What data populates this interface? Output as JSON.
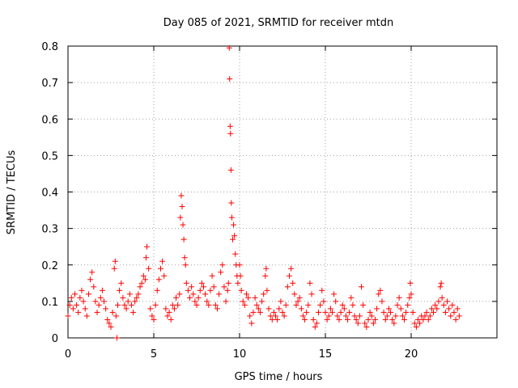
{
  "chart_data": {
    "type": "scatter",
    "title": "Day 085 of 2021, SRMTID for receiver mtdn",
    "xlabel": "GPS time / hours",
    "ylabel": "SRMTID / TECUs",
    "xlim": [
      0,
      25
    ],
    "ylim": [
      0,
      0.8
    ],
    "xticks": [
      0,
      5,
      10,
      15,
      20
    ],
    "xtick_labels": [
      "0",
      "5",
      "10",
      "15",
      "20"
    ],
    "yticks": [
      0,
      0.1,
      0.2,
      0.3,
      0.4,
      0.5,
      0.6,
      0.7,
      0.8
    ],
    "ytick_labels": [
      "0",
      "0.1",
      "0.2",
      "0.3",
      "0.4",
      "0.5",
      "0.6",
      "0.7",
      "0.8"
    ],
    "grid": true,
    "marker": "plus",
    "color": "#ff0000",
    "series": [
      {
        "name": "SRMTID",
        "points": [
          [
            0.0,
            0.06
          ],
          [
            0.1,
            0.09
          ],
          [
            0.2,
            0.11
          ],
          [
            0.3,
            0.08
          ],
          [
            0.4,
            0.12
          ],
          [
            0.5,
            0.09
          ],
          [
            0.6,
            0.07
          ],
          [
            0.7,
            0.11
          ],
          [
            0.8,
            0.13
          ],
          [
            0.9,
            0.1
          ],
          [
            1.0,
            0.08
          ],
          [
            1.1,
            0.06
          ],
          [
            1.2,
            0.12
          ],
          [
            1.3,
            0.16
          ],
          [
            1.4,
            0.18
          ],
          [
            1.5,
            0.14
          ],
          [
            1.6,
            0.1
          ],
          [
            1.7,
            0.07
          ],
          [
            1.8,
            0.09
          ],
          [
            1.9,
            0.11
          ],
          [
            2.0,
            0.13
          ],
          [
            2.1,
            0.1
          ],
          [
            2.2,
            0.08
          ],
          [
            2.3,
            0.05
          ],
          [
            2.4,
            0.04
          ],
          [
            2.5,
            0.03
          ],
          [
            2.6,
            0.07
          ],
          [
            2.7,
            0.19
          ],
          [
            2.75,
            0.21
          ],
          [
            2.8,
            0.06
          ],
          [
            2.85,
            0.0
          ],
          [
            2.9,
            0.09
          ],
          [
            3.0,
            0.13
          ],
          [
            3.1,
            0.15
          ],
          [
            3.2,
            0.11
          ],
          [
            3.3,
            0.09
          ],
          [
            3.4,
            0.08
          ],
          [
            3.5,
            0.1
          ],
          [
            3.6,
            0.12
          ],
          [
            3.7,
            0.09
          ],
          [
            3.8,
            0.07
          ],
          [
            3.9,
            0.1
          ],
          [
            4.0,
            0.11
          ],
          [
            4.1,
            0.12
          ],
          [
            4.2,
            0.14
          ],
          [
            4.3,
            0.15
          ],
          [
            4.4,
            0.17
          ],
          [
            4.5,
            0.16
          ],
          [
            4.55,
            0.22
          ],
          [
            4.6,
            0.25
          ],
          [
            4.7,
            0.19
          ],
          [
            4.8,
            0.08
          ],
          [
            4.9,
            0.06
          ],
          [
            5.0,
            0.05
          ],
          [
            5.1,
            0.09
          ],
          [
            5.2,
            0.13
          ],
          [
            5.3,
            0.16
          ],
          [
            5.4,
            0.19
          ],
          [
            5.5,
            0.21
          ],
          [
            5.6,
            0.17
          ],
          [
            5.7,
            0.08
          ],
          [
            5.8,
            0.06
          ],
          [
            5.9,
            0.07
          ],
          [
            6.0,
            0.05
          ],
          [
            6.1,
            0.09
          ],
          [
            6.2,
            0.08
          ],
          [
            6.3,
            0.11
          ],
          [
            6.4,
            0.09
          ],
          [
            6.5,
            0.12
          ],
          [
            6.55,
            0.33
          ],
          [
            6.6,
            0.39
          ],
          [
            6.65,
            0.36
          ],
          [
            6.7,
            0.31
          ],
          [
            6.75,
            0.27
          ],
          [
            6.8,
            0.22
          ],
          [
            6.85,
            0.2
          ],
          [
            6.9,
            0.15
          ],
          [
            7.0,
            0.13
          ],
          [
            7.1,
            0.11
          ],
          [
            7.2,
            0.14
          ],
          [
            7.3,
            0.12
          ],
          [
            7.4,
            0.1
          ],
          [
            7.5,
            0.09
          ],
          [
            7.6,
            0.11
          ],
          [
            7.7,
            0.13
          ],
          [
            7.8,
            0.15
          ],
          [
            7.9,
            0.14
          ],
          [
            8.0,
            0.12
          ],
          [
            8.1,
            0.1
          ],
          [
            8.2,
            0.09
          ],
          [
            8.3,
            0.13
          ],
          [
            8.4,
            0.17
          ],
          [
            8.5,
            0.14
          ],
          [
            8.6,
            0.09
          ],
          [
            8.7,
            0.08
          ],
          [
            8.8,
            0.12
          ],
          [
            8.9,
            0.18
          ],
          [
            9.0,
            0.2
          ],
          [
            9.1,
            0.14
          ],
          [
            9.2,
            0.1
          ],
          [
            9.3,
            0.13
          ],
          [
            9.35,
            0.15
          ],
          [
            9.4,
            0.795
          ],
          [
            9.42,
            0.71
          ],
          [
            9.45,
            0.58
          ],
          [
            9.47,
            0.56
          ],
          [
            9.5,
            0.46
          ],
          [
            9.52,
            0.37
          ],
          [
            9.55,
            0.33
          ],
          [
            9.6,
            0.27
          ],
          [
            9.65,
            0.31
          ],
          [
            9.7,
            0.28
          ],
          [
            9.75,
            0.23
          ],
          [
            9.8,
            0.2
          ],
          [
            9.85,
            0.17
          ],
          [
            9.9,
            0.15
          ],
          [
            10.0,
            0.2
          ],
          [
            10.05,
            0.17
          ],
          [
            10.1,
            0.13
          ],
          [
            10.2,
            0.1
          ],
          [
            10.3,
            0.09
          ],
          [
            10.4,
            0.12
          ],
          [
            10.5,
            0.11
          ],
          [
            10.6,
            0.06
          ],
          [
            10.7,
            0.04
          ],
          [
            10.8,
            0.07
          ],
          [
            10.9,
            0.11
          ],
          [
            11.0,
            0.09
          ],
          [
            11.1,
            0.08
          ],
          [
            11.2,
            0.07
          ],
          [
            11.3,
            0.1
          ],
          [
            11.4,
            0.12
          ],
          [
            11.5,
            0.17
          ],
          [
            11.55,
            0.19
          ],
          [
            11.6,
            0.13
          ],
          [
            11.7,
            0.08
          ],
          [
            11.8,
            0.06
          ],
          [
            11.9,
            0.05
          ],
          [
            12.0,
            0.07
          ],
          [
            12.1,
            0.06
          ],
          [
            12.2,
            0.05
          ],
          [
            12.3,
            0.08
          ],
          [
            12.4,
            0.1
          ],
          [
            12.5,
            0.07
          ],
          [
            12.6,
            0.06
          ],
          [
            12.7,
            0.09
          ],
          [
            12.8,
            0.14
          ],
          [
            12.9,
            0.17
          ],
          [
            13.0,
            0.19
          ],
          [
            13.1,
            0.15
          ],
          [
            13.2,
            0.12
          ],
          [
            13.3,
            0.09
          ],
          [
            13.4,
            0.1
          ],
          [
            13.5,
            0.11
          ],
          [
            13.6,
            0.08
          ],
          [
            13.7,
            0.06
          ],
          [
            13.8,
            0.05
          ],
          [
            13.9,
            0.07
          ],
          [
            14.0,
            0.09
          ],
          [
            14.1,
            0.15
          ],
          [
            14.2,
            0.12
          ],
          [
            14.3,
            0.05
          ],
          [
            14.4,
            0.03
          ],
          [
            14.5,
            0.04
          ],
          [
            14.6,
            0.07
          ],
          [
            14.7,
            0.09
          ],
          [
            14.8,
            0.13
          ],
          [
            14.9,
            0.1
          ],
          [
            15.0,
            0.07
          ],
          [
            15.1,
            0.05
          ],
          [
            15.2,
            0.06
          ],
          [
            15.3,
            0.08
          ],
          [
            15.4,
            0.07
          ],
          [
            15.5,
            0.12
          ],
          [
            15.6,
            0.1
          ],
          [
            15.7,
            0.06
          ],
          [
            15.8,
            0.05
          ],
          [
            15.9,
            0.07
          ],
          [
            16.0,
            0.09
          ],
          [
            16.1,
            0.08
          ],
          [
            16.2,
            0.06
          ],
          [
            16.3,
            0.05
          ],
          [
            16.4,
            0.07
          ],
          [
            16.5,
            0.11
          ],
          [
            16.6,
            0.09
          ],
          [
            16.7,
            0.06
          ],
          [
            16.8,
            0.05
          ],
          [
            16.9,
            0.04
          ],
          [
            17.0,
            0.06
          ],
          [
            17.1,
            0.14
          ],
          [
            17.2,
            0.09
          ],
          [
            17.3,
            0.04
          ],
          [
            17.4,
            0.03
          ],
          [
            17.5,
            0.05
          ],
          [
            17.6,
            0.07
          ],
          [
            17.7,
            0.06
          ],
          [
            17.8,
            0.04
          ],
          [
            17.9,
            0.05
          ],
          [
            18.0,
            0.08
          ],
          [
            18.1,
            0.12
          ],
          [
            18.2,
            0.13
          ],
          [
            18.3,
            0.1
          ],
          [
            18.4,
            0.07
          ],
          [
            18.5,
            0.05
          ],
          [
            18.6,
            0.06
          ],
          [
            18.7,
            0.08
          ],
          [
            18.8,
            0.07
          ],
          [
            18.9,
            0.05
          ],
          [
            19.0,
            0.04
          ],
          [
            19.1,
            0.06
          ],
          [
            19.2,
            0.09
          ],
          [
            19.3,
            0.11
          ],
          [
            19.4,
            0.08
          ],
          [
            19.5,
            0.06
          ],
          [
            19.6,
            0.05
          ],
          [
            19.7,
            0.07
          ],
          [
            19.8,
            0.09
          ],
          [
            19.9,
            0.11
          ],
          [
            19.95,
            0.15
          ],
          [
            20.0,
            0.12
          ],
          [
            20.1,
            0.07
          ],
          [
            20.2,
            0.04
          ],
          [
            20.3,
            0.03
          ],
          [
            20.4,
            0.05
          ],
          [
            20.5,
            0.04
          ],
          [
            20.6,
            0.06
          ],
          [
            20.7,
            0.05
          ],
          [
            20.8,
            0.06
          ],
          [
            20.9,
            0.07
          ],
          [
            21.0,
            0.05
          ],
          [
            21.1,
            0.06
          ],
          [
            21.2,
            0.08
          ],
          [
            21.3,
            0.07
          ],
          [
            21.4,
            0.09
          ],
          [
            21.5,
            0.08
          ],
          [
            21.6,
            0.1
          ],
          [
            21.7,
            0.14
          ],
          [
            21.75,
            0.15
          ],
          [
            21.8,
            0.11
          ],
          [
            21.9,
            0.09
          ],
          [
            22.0,
            0.07
          ],
          [
            22.1,
            0.1
          ],
          [
            22.2,
            0.08
          ],
          [
            22.3,
            0.06
          ],
          [
            22.4,
            0.09
          ],
          [
            22.5,
            0.07
          ],
          [
            22.6,
            0.05
          ],
          [
            22.7,
            0.08
          ],
          [
            22.8,
            0.06
          ]
        ]
      }
    ]
  }
}
